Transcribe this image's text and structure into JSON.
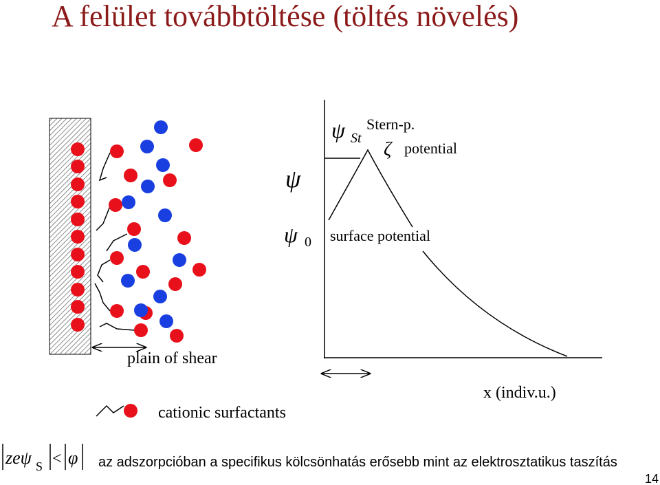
{
  "title": "A felület továbbtöltése (töltés növelés)",
  "diagram": {
    "axis_symbol": "ψ",
    "psi0": {
      "symbol": "ψ",
      "subscript": "0",
      "label": "surface potential"
    },
    "stern": {
      "symbol": "ψ",
      "subscript": "St",
      "label": "Stern-p."
    },
    "zeta": {
      "symbol": "ζ",
      "label": "potential"
    },
    "shear_label": "plain of shear",
    "legend_label": "cationic surfactants",
    "x_label": "x (indiv.u.)"
  },
  "footer": {
    "formula": {
      "lhs": "zeψ",
      "subscript": "S",
      "relation": "<",
      "rhs": "φ"
    },
    "text": "az adszorpcióban a specifikus kölcsönhatás erősebb mint az elektrosztatikus taszítás",
    "page": "14"
  }
}
